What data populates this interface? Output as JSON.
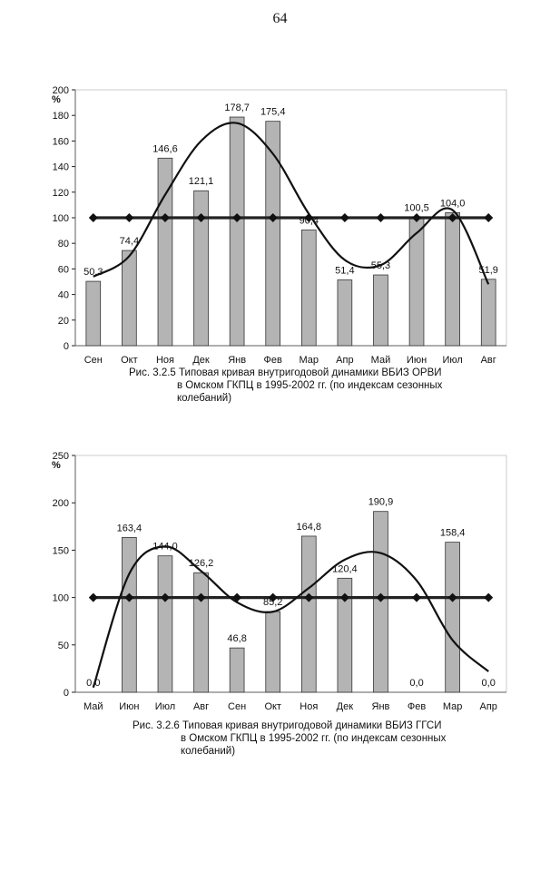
{
  "page": {
    "number": "64"
  },
  "chart_data": [
    {
      "type": "bar",
      "title": "",
      "ylabel": "%",
      "xlabel": "",
      "ylim": [
        0,
        200
      ],
      "yticks": [
        "0",
        "20",
        "40",
        "60",
        "80",
        "100",
        "120",
        "140",
        "160",
        "180",
        "200"
      ],
      "grid": false,
      "legend": "none",
      "categories": [
        "Сен",
        "Окт",
        "Ноя",
        "Дек",
        "Янв",
        "Фев",
        "Мар",
        "Апр",
        "Май",
        "Июн",
        "Июл",
        "Авг"
      ],
      "series": [
        {
          "kind": "bar",
          "values": [
            50.3,
            74.4,
            146.6,
            121.1,
            178.7,
            175.4,
            90.4,
            51.4,
            55.3,
            100.5,
            104.0,
            51.9
          ],
          "labels": [
            "50,3",
            "74,4",
            "146,6",
            "121,1",
            "178,7",
            "175,4",
            "90,4",
            "51,4",
            "55,3",
            "100,5",
            "104,0",
            "51,9"
          ]
        },
        {
          "kind": "line-markers",
          "values": [
            100,
            100,
            100,
            100,
            100,
            100,
            100,
            100,
            100,
            100,
            100,
            100
          ]
        },
        {
          "kind": "trend-curve",
          "values": [
            54,
            70,
            118,
            160,
            174,
            150,
            103,
            67,
            63,
            88,
            106,
            48
          ]
        }
      ],
      "colors": {
        "bar": "#b4b4b4",
        "bar_edge": "#333333",
        "line": "#222222"
      },
      "caption": [
        "Рис. 3.2.5 Типовая кривая внутригодовой динамики ВБИЗ ОРВИ",
        "в Омском ГКПЦ в 1995-2002 гг. (по индексам сезонных",
        "колебаний)"
      ]
    },
    {
      "type": "bar",
      "title": "",
      "ylabel": "%",
      "xlabel": "",
      "ylim": [
        0,
        250
      ],
      "yticks": [
        "0",
        "50",
        "100",
        "150",
        "200",
        "250"
      ],
      "grid": false,
      "legend": "none",
      "categories": [
        "Май",
        "Июн",
        "Июл",
        "Авг",
        "Сен",
        "Окт",
        "Ноя",
        "Дек",
        "Янв",
        "Фев",
        "Мар",
        "Апр"
      ],
      "series": [
        {
          "kind": "bar",
          "values": [
            0.0,
            163.4,
            144.0,
            126.2,
            46.8,
            85.2,
            164.8,
            120.4,
            190.9,
            0.0,
            158.4,
            0.0
          ],
          "labels": [
            "0,0",
            "163,4",
            "144,0",
            "126,2",
            "46,8",
            "85,2",
            "164,8",
            "120,4",
            "190,9",
            "0,0",
            "158,4",
            "0,0"
          ]
        },
        {
          "kind": "line-markers",
          "values": [
            100,
            100,
            100,
            100,
            100,
            100,
            100,
            100,
            100,
            100,
            100,
            100
          ]
        },
        {
          "kind": "trend-curve",
          "values": [
            5,
            125,
            154,
            128,
            95,
            85,
            110,
            140,
            147,
            118,
            55,
            22
          ]
        }
      ],
      "colors": {
        "bar": "#b4b4b4",
        "bar_edge": "#333333",
        "line": "#222222"
      },
      "caption": [
        "Рис. 3.2.6 Типовая кривая внутригодовой динамики ВБИЗ ГГСИ",
        "в Омском ГКПЦ в 1995-2002 гг. (по индексам сезонных",
        "колебаний)"
      ]
    }
  ]
}
